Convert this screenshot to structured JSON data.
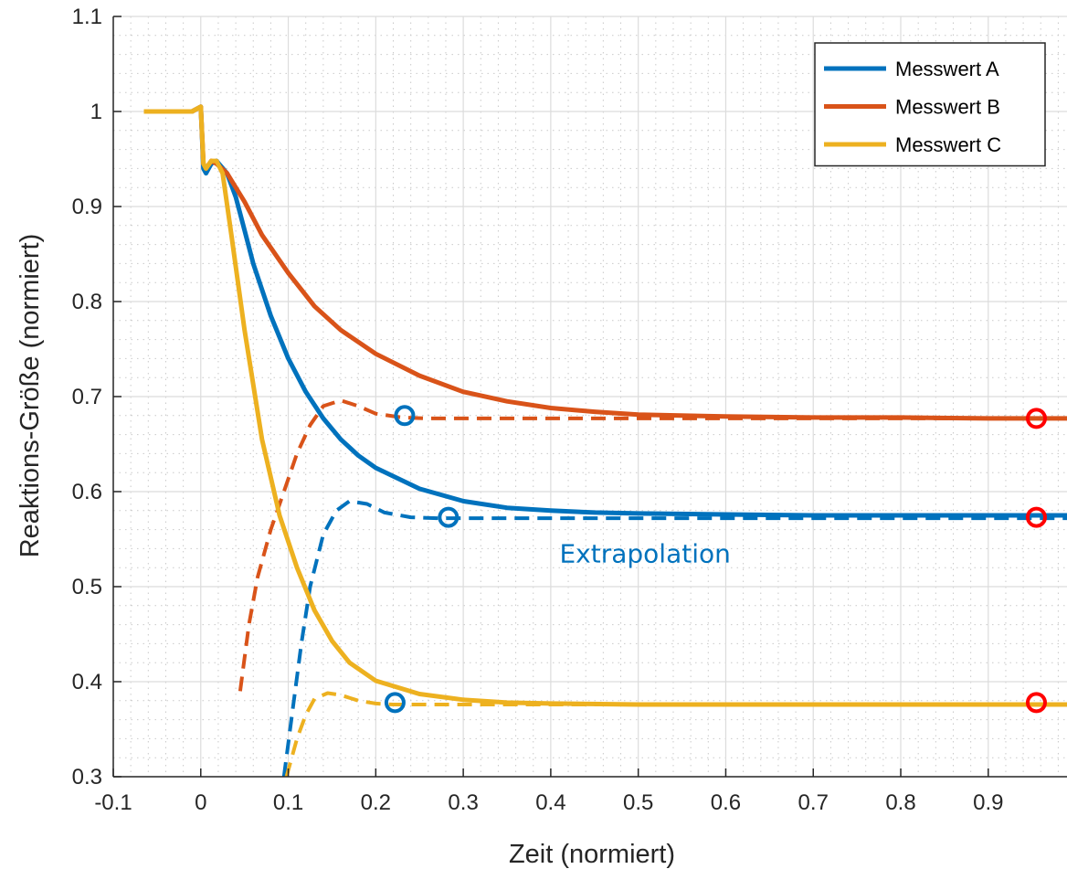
{
  "chart_data": {
    "type": "line",
    "xlabel": "Zeit (normiert)",
    "ylabel": "Reaktions-Größe (normiert)",
    "xlim": [
      -0.1,
      0.99
    ],
    "ylim": [
      0.3,
      1.1
    ],
    "xticks": [
      -0.1,
      0,
      0.1,
      0.2,
      0.3,
      0.4,
      0.5,
      0.6,
      0.7,
      0.8,
      0.9
    ],
    "xtick_labels": [
      "-0.1",
      "0",
      "0.1",
      "0.2",
      "0.3",
      "0.4",
      "0.5",
      "0.6",
      "0.7",
      "0.8",
      "0.9"
    ],
    "yticks": [
      0.3,
      0.4,
      0.5,
      0.6,
      0.7,
      0.8,
      0.9,
      1.0,
      1.1
    ],
    "ytick_labels": [
      "0.3",
      "0.4",
      "0.5",
      "0.6",
      "0.7",
      "0.8",
      "0.9",
      "1",
      "1.1"
    ],
    "grid": "major and minor",
    "legend_position": "top-right",
    "series": [
      {
        "name": "Messwert A",
        "color": "#0072BD",
        "style": "solid",
        "x": [
          -0.065,
          -0.01,
          0.0,
          0.003,
          0.006,
          0.012,
          0.018,
          0.03,
          0.04,
          0.05,
          0.06,
          0.08,
          0.1,
          0.12,
          0.14,
          0.16,
          0.18,
          0.2,
          0.25,
          0.3,
          0.35,
          0.4,
          0.45,
          0.5,
          0.6,
          0.7,
          0.8,
          0.9,
          0.99
        ],
        "y": [
          1.0,
          1.0,
          1.005,
          0.94,
          0.935,
          0.945,
          0.948,
          0.935,
          0.91,
          0.875,
          0.84,
          0.785,
          0.74,
          0.705,
          0.677,
          0.655,
          0.638,
          0.625,
          0.603,
          0.59,
          0.583,
          0.58,
          0.578,
          0.577,
          0.576,
          0.575,
          0.575,
          0.575,
          0.575
        ]
      },
      {
        "name": "Messwert B",
        "color": "#D95319",
        "style": "solid",
        "x": [
          -0.065,
          -0.01,
          0.0,
          0.003,
          0.006,
          0.012,
          0.018,
          0.03,
          0.05,
          0.07,
          0.1,
          0.13,
          0.16,
          0.2,
          0.25,
          0.3,
          0.35,
          0.4,
          0.45,
          0.5,
          0.6,
          0.7,
          0.8,
          0.9,
          0.99
        ],
        "y": [
          1.0,
          1.0,
          1.005,
          0.945,
          0.94,
          0.948,
          0.945,
          0.935,
          0.905,
          0.87,
          0.83,
          0.795,
          0.77,
          0.745,
          0.722,
          0.705,
          0.695,
          0.688,
          0.684,
          0.681,
          0.679,
          0.678,
          0.678,
          0.677,
          0.677
        ]
      },
      {
        "name": "Messwert C",
        "color": "#EDB120",
        "style": "solid",
        "x": [
          -0.065,
          -0.01,
          0.0,
          0.003,
          0.006,
          0.012,
          0.018,
          0.025,
          0.035,
          0.05,
          0.07,
          0.09,
          0.11,
          0.13,
          0.15,
          0.17,
          0.2,
          0.25,
          0.3,
          0.35,
          0.4,
          0.5,
          0.6,
          0.7,
          0.8,
          0.9,
          0.99
        ],
        "y": [
          1.0,
          1.0,
          1.005,
          0.945,
          0.94,
          0.948,
          0.948,
          0.935,
          0.87,
          0.77,
          0.655,
          0.575,
          0.52,
          0.475,
          0.443,
          0.42,
          0.401,
          0.387,
          0.381,
          0.378,
          0.377,
          0.376,
          0.376,
          0.376,
          0.376,
          0.376,
          0.376
        ]
      },
      {
        "color": "#0072BD",
        "style": "dashed",
        "x": [
          0.095,
          0.105,
          0.115,
          0.125,
          0.14,
          0.155,
          0.17,
          0.19,
          0.21,
          0.24,
          0.27,
          0.3,
          0.4,
          0.5,
          0.6,
          0.7,
          0.8,
          0.9,
          0.99
        ],
        "y": [
          0.3,
          0.37,
          0.44,
          0.5,
          0.555,
          0.58,
          0.59,
          0.587,
          0.578,
          0.573,
          0.572,
          0.572,
          0.572,
          0.572,
          0.572,
          0.572,
          0.572,
          0.572,
          0.572
        ]
      },
      {
        "color": "#D95319",
        "style": "dashed",
        "x": [
          0.045,
          0.055,
          0.065,
          0.08,
          0.095,
          0.11,
          0.125,
          0.14,
          0.16,
          0.18,
          0.2,
          0.23,
          0.26,
          0.3,
          0.4,
          0.5,
          0.6,
          0.7,
          0.8,
          0.9,
          0.99
        ],
        "y": [
          0.39,
          0.46,
          0.51,
          0.56,
          0.6,
          0.64,
          0.67,
          0.69,
          0.696,
          0.69,
          0.682,
          0.678,
          0.677,
          0.677,
          0.677,
          0.677,
          0.677,
          0.677,
          0.677,
          0.677,
          0.677
        ]
      },
      {
        "color": "#EDB120",
        "style": "dashed",
        "x": [
          0.098,
          0.11,
          0.12,
          0.13,
          0.145,
          0.16,
          0.18,
          0.2,
          0.22,
          0.25,
          0.3,
          0.4,
          0.5,
          0.6,
          0.7,
          0.8,
          0.9,
          0.99
        ],
        "y": [
          0.3,
          0.34,
          0.365,
          0.382,
          0.388,
          0.386,
          0.38,
          0.377,
          0.376,
          0.376,
          0.376,
          0.376,
          0.376,
          0.376,
          0.376,
          0.376,
          0.376,
          0.376
        ]
      }
    ],
    "markers": [
      {
        "x": 0.233,
        "y": 0.68,
        "color": "#0072BD"
      },
      {
        "x": 0.283,
        "y": 0.573,
        "color": "#0072BD"
      },
      {
        "x": 0.222,
        "y": 0.378,
        "color": "#0072BD"
      },
      {
        "x": 0.955,
        "y": 0.677,
        "color": "#FF0000"
      },
      {
        "x": 0.955,
        "y": 0.573,
        "color": "#FF0000"
      },
      {
        "x": 0.955,
        "y": 0.378,
        "color": "#FF0000"
      }
    ],
    "annotations": [
      {
        "text": "Extrapolation",
        "x": 0.41,
        "y": 0.535,
        "color": "#0072BD"
      }
    ]
  }
}
